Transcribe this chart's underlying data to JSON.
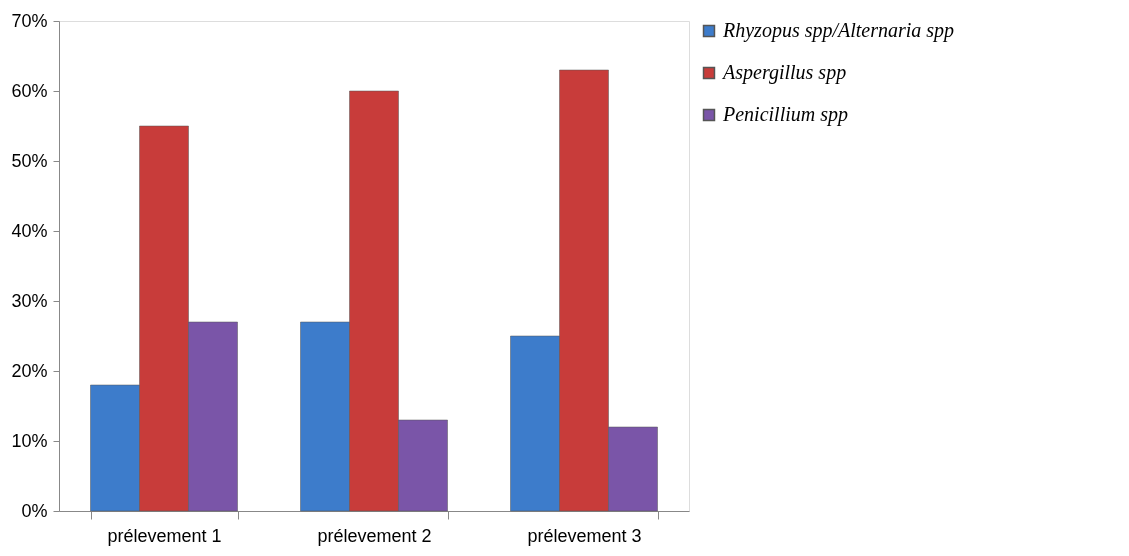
{
  "chart_data": {
    "type": "bar",
    "categories": [
      "prélevement 1",
      "prélevement 2",
      "prélevement 3"
    ],
    "series": [
      {
        "name": "Rhyzopus spp/Alternaria spp",
        "color": "#3d7ccb",
        "values": [
          18,
          27,
          25
        ]
      },
      {
        "name": "Aspergillus spp",
        "color": "#c83c3a",
        "values": [
          55,
          60,
          63
        ]
      },
      {
        "name": "Penicillium spp",
        "color": "#7a55a8",
        "values": [
          27,
          13,
          12
        ]
      }
    ],
    "ylim": [
      0,
      70
    ],
    "yticks": [
      {
        "value": 0,
        "label": "0%"
      },
      {
        "value": 10,
        "label": "10%"
      },
      {
        "value": 20,
        "label": "20%"
      },
      {
        "value": 30,
        "label": "30%"
      },
      {
        "value": 40,
        "label": "40%"
      },
      {
        "value": 50,
        "label": "50%"
      },
      {
        "value": 60,
        "label": "60%"
      },
      {
        "value": 70,
        "label": "70%"
      }
    ],
    "grid": false,
    "legend": "right"
  }
}
